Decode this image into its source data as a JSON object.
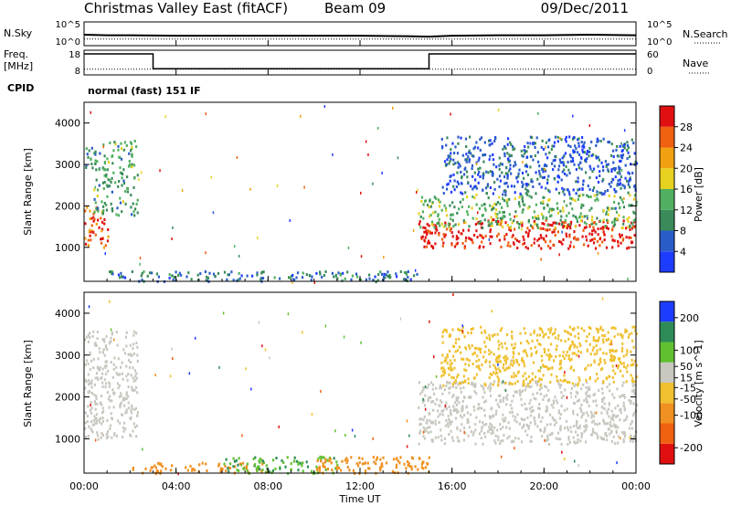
{
  "header": {
    "station": "Christmas Valley East (fitACF)",
    "beam": "Beam 09",
    "date": "09/Dec/2011"
  },
  "noise_panel": {
    "left_label": "N.Sky",
    "right_label": "N.Search",
    "left_ticks": [
      "10^5",
      "10^0"
    ],
    "right_ticks": [
      "10^5",
      "10^0"
    ]
  },
  "freq_panel": {
    "left_label_1": "Freq.",
    "left_label_2": "[MHz]",
    "right_label": "Nave",
    "left_ticks": [
      "18",
      "8"
    ],
    "right_ticks": [
      "60",
      "0"
    ]
  },
  "cpid": {
    "label": "CPID",
    "value": "normal (fast) 151 IF"
  },
  "x_axis": {
    "label": "Time UT",
    "ticks": [
      "00:00",
      "04:00",
      "08:00",
      "12:00",
      "16:00",
      "20:00",
      "00:00"
    ]
  },
  "colors": {
    "power": [
      "#1e3cff",
      "#2a5cc8",
      "#3a8a5a",
      "#50b060",
      "#e6d020",
      "#f0a010",
      "#f06010",
      "#e01010"
    ],
    "velocity": [
      "#e01010",
      "#f06010",
      "#f09020",
      "#f0c030",
      "#c8c8c0",
      "#60c030",
      "#2e8b57",
      "#1e3cff"
    ]
  },
  "chart_data": [
    {
      "type": "line",
      "title": "Christmas Valley East (fitACF)",
      "series": [
        {
          "name": "N.Sky",
          "x": [
            0,
            1,
            2,
            4,
            6,
            8,
            10,
            12,
            14,
            15,
            16,
            18,
            20,
            22,
            24
          ],
          "y": [
            2.3,
            2.2,
            2.2,
            2.1,
            2.1,
            2.1,
            2.1,
            2.1,
            2.0,
            1.9,
            2.1,
            2.2,
            2.2,
            2.3,
            2.2
          ]
        },
        {
          "name": "N.Search",
          "x": [
            0,
            4,
            8,
            12,
            16,
            20,
            24
          ],
          "y": [
            1.4,
            1.4,
            1.4,
            1.4,
            1.4,
            1.4,
            1.4
          ]
        }
      ],
      "xlim": [
        0,
        24
      ],
      "y_ticks_left": [
        "10^5",
        "10^0"
      ],
      "y_ticks_right": [
        "10^5",
        "10^0"
      ]
    },
    {
      "type": "line",
      "series": [
        {
          "name": "Freq.",
          "x": [
            0,
            3,
            3,
            15,
            15,
            24
          ],
          "y": [
            16.5,
            16.5,
            10.5,
            10.5,
            16.5,
            16.5
          ]
        },
        {
          "name": "Nave",
          "x": [
            0,
            4,
            8,
            12,
            16,
            20,
            24
          ],
          "y": [
            14,
            14,
            14,
            14,
            14,
            14,
            14
          ]
        }
      ],
      "xlim": [
        0,
        24
      ],
      "ylim": [
        8,
        18
      ],
      "y2lim": [
        0,
        60
      ]
    },
    {
      "type": "heatmap",
      "ylabel": "Slant Range [km]",
      "xlabel": "Time UT",
      "xlim": [
        0,
        24
      ],
      "ylim": [
        180,
        4500
      ],
      "y_ticks": [
        1000,
        2000,
        3000,
        4000
      ],
      "colorbar": {
        "label": "Power [dB]",
        "ticks": [
          4,
          8,
          12,
          16,
          20,
          24,
          28
        ],
        "range": [
          0,
          32
        ]
      },
      "regions": [
        {
          "t0": 0.0,
          "t1": 1.1,
          "r0": 1000,
          "r1": 2000,
          "level": 26
        },
        {
          "t0": 0.4,
          "t1": 2.3,
          "r0": 1800,
          "r1": 3600,
          "level": 12
        },
        {
          "t0": 0.0,
          "t1": 0.5,
          "r0": 2900,
          "r1": 3500,
          "level": 10
        },
        {
          "t0": 1.0,
          "t1": 14.5,
          "r0": 200,
          "r1": 450,
          "level": 8
        },
        {
          "t0": 14.5,
          "t1": 24.0,
          "r0": 1000,
          "r1": 1700,
          "level": 30
        },
        {
          "t0": 14.5,
          "t1": 24.0,
          "r0": 1500,
          "r1": 2300,
          "level": 14
        },
        {
          "t0": 15.5,
          "t1": 24.0,
          "r0": 2300,
          "r1": 3700,
          "level": 6
        }
      ]
    },
    {
      "type": "heatmap",
      "ylabel": "Slant Range [km]",
      "xlabel": "Time UT",
      "xlim": [
        0,
        24
      ],
      "ylim": [
        180,
        4500
      ],
      "y_ticks": [
        1000,
        2000,
        3000,
        4000
      ],
      "colorbar": {
        "label": "Velocity [m s^-1]",
        "ticks": [
          200,
          100,
          50,
          15,
          -15,
          -50,
          -100,
          -200
        ],
        "range": [
          -250,
          250
        ]
      },
      "regions": [
        {
          "t0": 0.0,
          "t1": 2.3,
          "r0": 1000,
          "r1": 3600,
          "level": 0
        },
        {
          "t0": 2.0,
          "t1": 8.0,
          "r0": 200,
          "r1": 450,
          "level": -40
        },
        {
          "t0": 6.0,
          "t1": 11.0,
          "r0": 200,
          "r1": 600,
          "level": 30
        },
        {
          "t0": 10.0,
          "t1": 15.0,
          "r0": 200,
          "r1": 600,
          "level": -60
        },
        {
          "t0": 14.5,
          "t1": 24.0,
          "r0": 900,
          "r1": 2400,
          "level": 0
        },
        {
          "t0": 15.5,
          "t1": 24.0,
          "r0": 2300,
          "r1": 3700,
          "level": -20
        }
      ]
    }
  ]
}
